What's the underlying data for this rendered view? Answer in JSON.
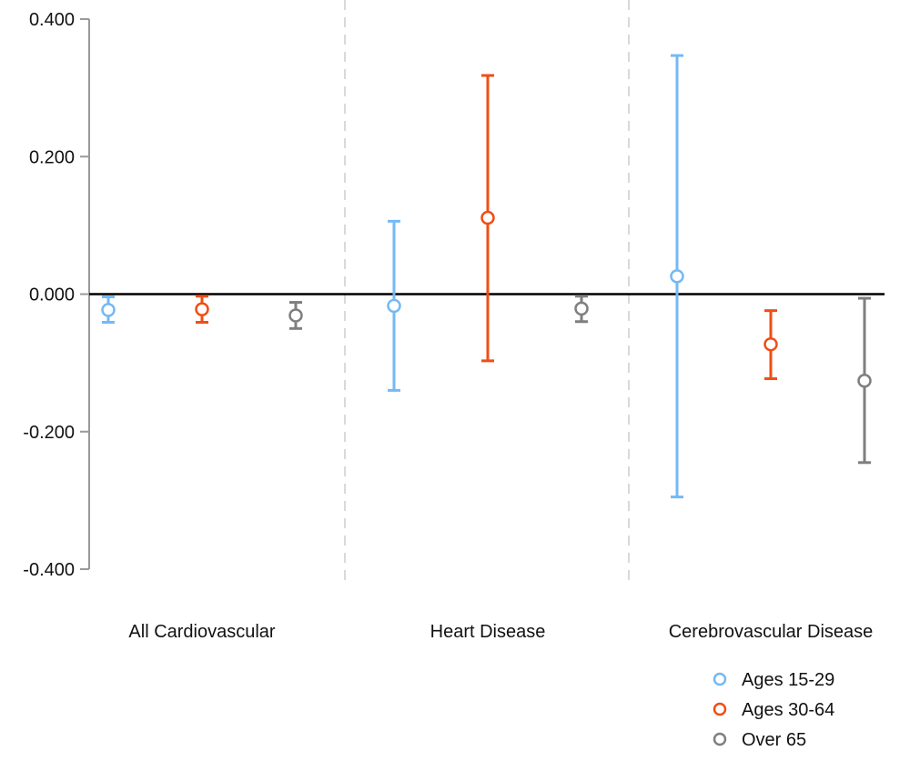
{
  "colors": {
    "axis": "#999999",
    "zero_line": "#000000",
    "separator": "#d9d9d9"
  },
  "chart_data": {
    "type": "scatter",
    "subtype": "error-bar",
    "categories": [
      "All Cardiovascular",
      "Heart Disease",
      "Cerebrovascular Disease"
    ],
    "yticks": [
      "0.400",
      "0.200",
      "0.000",
      "-0.200",
      "-0.400"
    ],
    "ylim": [
      -0.4,
      0.4
    ],
    "grid": false,
    "legend_position": "bottom-right",
    "series": [
      {
        "name": "Ages 15-29",
        "color": "#74b9f5",
        "points": [
          {
            "category": "All Cardiovascular",
            "value": -0.023,
            "lower": -0.041,
            "upper": -0.004
          },
          {
            "category": "Heart Disease",
            "value": -0.017,
            "lower": -0.14,
            "upper": 0.106
          },
          {
            "category": "Cerebrovascular Disease",
            "value": 0.026,
            "lower": -0.295,
            "upper": 0.347
          }
        ]
      },
      {
        "name": "Ages 30-64",
        "color": "#f04e14",
        "points": [
          {
            "category": "All Cardiovascular",
            "value": -0.022,
            "lower": -0.041,
            "upper": -0.003
          },
          {
            "category": "Heart Disease",
            "value": 0.111,
            "lower": -0.097,
            "upper": 0.318
          },
          {
            "category": "Cerebrovascular Disease",
            "value": -0.073,
            "lower": -0.123,
            "upper": -0.024
          }
        ]
      },
      {
        "name": "Over 65",
        "color": "#7f7f7f",
        "points": [
          {
            "category": "All Cardiovascular",
            "value": -0.031,
            "lower": -0.05,
            "upper": -0.012
          },
          {
            "category": "Heart Disease",
            "value": -0.021,
            "lower": -0.04,
            "upper": -0.003
          },
          {
            "category": "Cerebrovascular Disease",
            "value": -0.126,
            "lower": -0.245,
            "upper": -0.006
          }
        ]
      }
    ]
  }
}
